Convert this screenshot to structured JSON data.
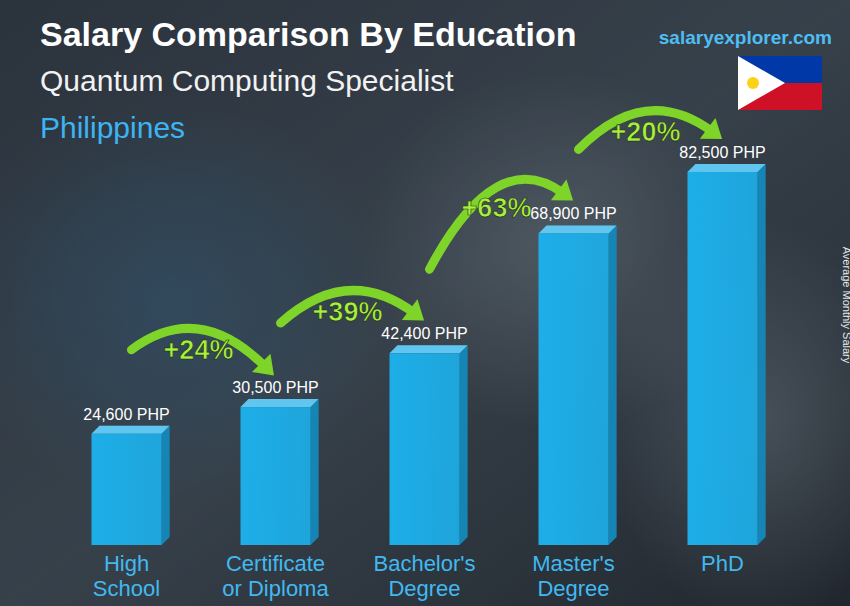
{
  "chart_data": {
    "type": "bar",
    "title": "Salary Comparison By Education",
    "subtitle": "Quantum Computing Specialist",
    "location": "Philippines",
    "source": "salaryexplorer.com",
    "y_label": "Average Monthly Salary",
    "categories": [
      "High School",
      "Certificate or Diploma",
      "Bachelor's Degree",
      "Master's Degree",
      "PhD"
    ],
    "values": [
      24600,
      30500,
      42400,
      68900,
      82500
    ],
    "value_labels": [
      "24,600 PHP",
      "30,500 PHP",
      "42,400 PHP",
      "68,900 PHP",
      "82,500 PHP"
    ],
    "annotations": [
      "+24%",
      "+39%",
      "+63%",
      "+20%"
    ],
    "color": "#1daee8",
    "ylim": [
      0,
      90000
    ],
    "data_labels": true,
    "tick_labels": "x"
  }
}
